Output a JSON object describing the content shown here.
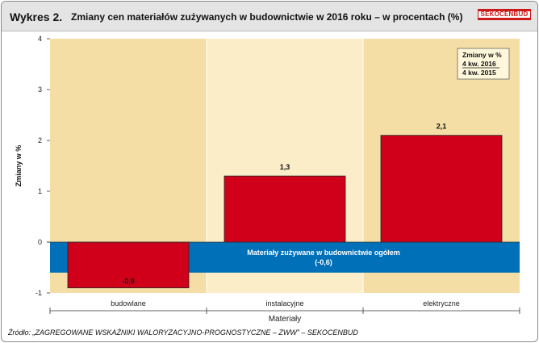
{
  "header": {
    "prefix": "Wykres 2.",
    "title": "Zmiany cen materiałów zużywanych w budownictwie w 2016 roku  – w procentach (%)",
    "logo": "SEKOCENBUD"
  },
  "source": "Źródło: „ZAGREGOWANE WSKAŹNIKI WALORYZACYJNO-PROGNOSTYCZNE – ZWW” – SEKOCENBUD",
  "legend": {
    "title": "Zmiany w %",
    "line1": "4 kw. 2016",
    "line2": "4 kw. 2015"
  },
  "chart_data": {
    "type": "bar",
    "categories": [
      "budowlane",
      "instalacyjne",
      "elektryczne"
    ],
    "values": [
      -0.9,
      1.3,
      2.1
    ],
    "value_labels": [
      "-0,9",
      "1,3",
      "2,1"
    ],
    "overall": {
      "label": "Materiały zużywane w budownictwie ogółem",
      "value": -0.6,
      "value_label": "(-0,6)"
    },
    "xlabel": "Materiały",
    "ylabel": "Zmiany w %",
    "ylim": [
      -1,
      4
    ],
    "yticks": [
      "-1",
      "0",
      "1",
      "2",
      "3",
      "4"
    ],
    "grid": false,
    "colors": {
      "bar": "#d1001a",
      "overall_band": "#0070b8",
      "background_outer": "#f4dea5",
      "background_middle": "#faedc8"
    }
  }
}
